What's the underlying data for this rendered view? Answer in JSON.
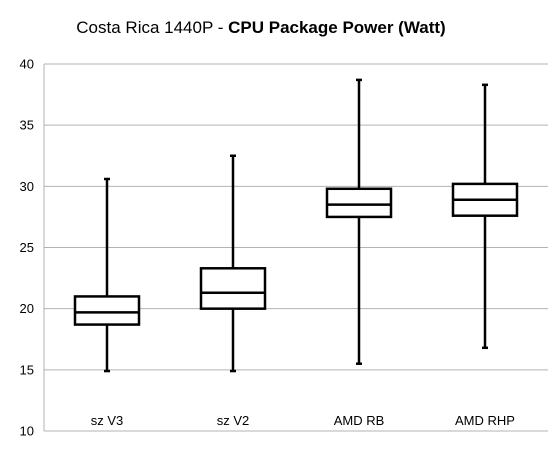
{
  "chart_data": {
    "type": "boxplot",
    "title_prefix": "Costa Rica 1440P - ",
    "title_bold": "CPU Package Power (Watt)",
    "xlabel": "",
    "ylabel": "",
    "ylim": [
      10,
      40
    ],
    "yticks": [
      "10",
      "15",
      "20",
      "25",
      "30",
      "35",
      "40"
    ],
    "grid": true,
    "categories": [
      "sz V3",
      "sz V2",
      "AMD RB",
      "AMD RHP"
    ],
    "boxes": [
      {
        "min": 14.9,
        "q1": 18.7,
        "median": 19.7,
        "q3": 21.0,
        "max": 30.6
      },
      {
        "min": 14.9,
        "q1": 20.0,
        "median": 21.3,
        "q3": 23.3,
        "max": 32.5
      },
      {
        "min": 15.5,
        "q1": 27.5,
        "median": 28.5,
        "q3": 29.8,
        "max": 38.7
      },
      {
        "min": 16.8,
        "q1": 27.6,
        "median": 28.9,
        "q3": 30.2,
        "max": 38.3
      }
    ],
    "colors": {
      "box_stroke": "#000000",
      "grid": "#b3b3b3",
      "axis": "#b3b3b3"
    }
  }
}
